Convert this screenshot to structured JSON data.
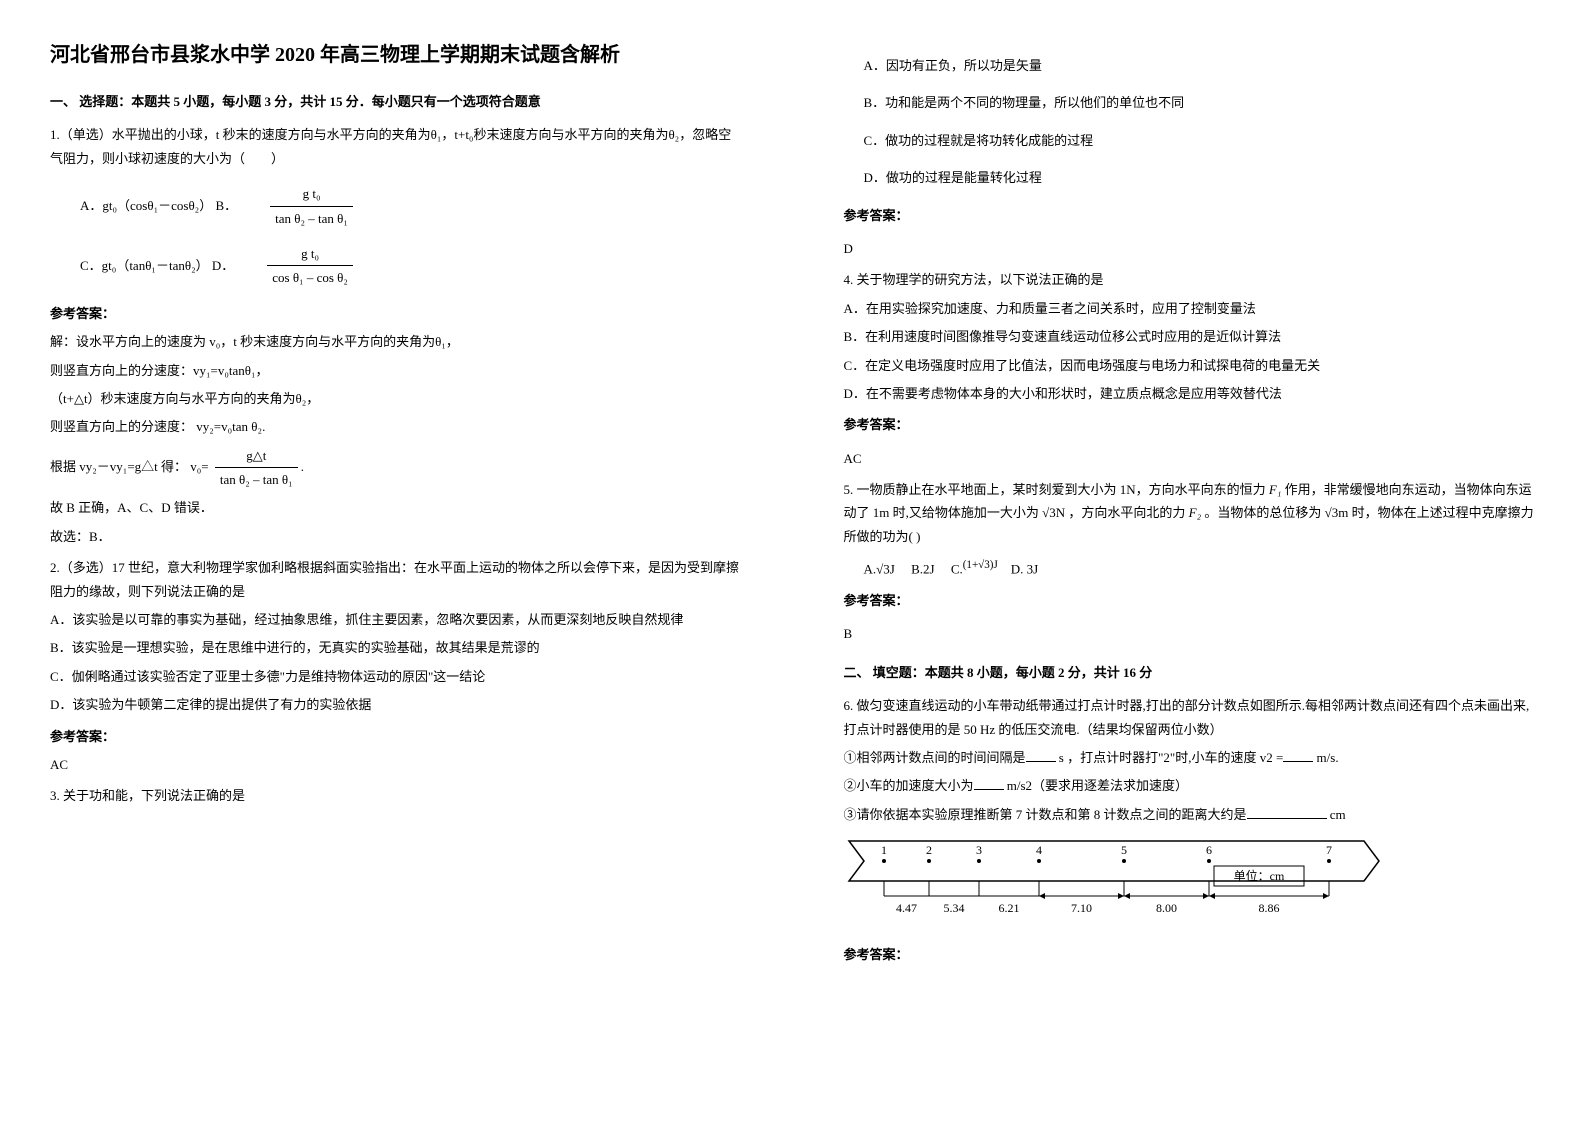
{
  "title": "河北省邢台市县浆水中学 2020 年高三物理上学期期末试题含解析",
  "section1_header": "一、 选择题：本题共 5 小题，每小题 3 分，共计 15 分．每小题只有一个选项符合题意",
  "q1_text": "1.（单选）水平抛出的小球，t 秒末的速度方向与水平方向的夹角为θ₁，t+t₀秒末速度方向与水平方向的夹角为θ₂，忽略空气阻力，则小球初速度的大小为（　　）",
  "q1_optA": "A．gt₀（cosθ₁－cosθ₂）  B．",
  "q1_optB_num": "g t₀",
  "q1_optB_den": "tan θ₂ – tan θ₁",
  "q1_optC": "C．gt₀（tanθ₁－tanθ₂）  D．",
  "q1_optD_num": "g t₀",
  "q1_optD_den": "cos θ₁ – cos θ₂",
  "answer_label": "参考答案：",
  "q1_ans1": "解：设水平方向上的速度为 v₀，t 秒末速度方向与水平方向的夹角为θ₁，",
  "q1_ans2": "则竖直方向上的分速度：vy₁=v₀tanθ₁，",
  "q1_ans3": "（t+△t）秒末速度方向与水平方向的夹角为θ₂，",
  "q1_ans4_prefix": "则竖直方向上的分速度：",
  "q1_ans4_formula": "vy₂=v₀tan θ₂",
  "q1_ans5_prefix": "根据 vy₂－vy₁=g△t 得：",
  "q1_ans5_num": "g△t",
  "q1_ans5_den": "tan θ₂ – tan θ₁",
  "q1_ans5_eq": "v₀=",
  "q1_ans6": "故 B 正确，A、C、D 错误．",
  "q1_ans7": "故选：B．",
  "q2_text": "2.（多选）17 世纪，意大利物理学家伽利略根据斜面实验指出：在水平面上运动的物体之所以会停下来，是因为受到摩擦阻力的缘故，则下列说法正确的是",
  "q2_A": "A．该实验是以可靠的事实为基础，经过抽象思维，抓住主要因素，忽略次要因素，从而更深刻地反映自然规律",
  "q2_B": "B．该实验是一理想实验，是在思维中进行的，无真实的实验基础，故其结果是荒谬的",
  "q2_C": "C．伽俐略通过该实验否定了亚里士多德\"力是维持物体运动的原因\"这一结论",
  "q2_D": "D．该实验为牛顿第二定律的提出提供了有力的实验依据",
  "q2_answer": "AC",
  "q3_text": "3. 关于功和能，下列说法正确的是",
  "q3_A": "A．因功有正负，所以功是矢量",
  "q3_B": "B．功和能是两个不同的物理量，所以他们的单位也不同",
  "q3_C": "C．做功的过程就是将功转化成能的过程",
  "q3_D": "D．做功的过程是能量转化过程",
  "q3_answer": "D",
  "q4_text": "4. 关于物理学的研究方法，以下说法正确的是",
  "q4_A": "A．在用实验探究加速度、力和质量三者之间关系时，应用了控制变量法",
  "q4_B": "B．在利用速度时间图像推导匀变速直线运动位移公式时应用的是近似计算法",
  "q4_C": "C．在定义电场强度时应用了比值法，因而电场强度与电场力和试探电荷的电量无关",
  "q4_D": "D．在不需要考虑物体本身的大小和形状时，建立质点概念是应用等效替代法",
  "q4_answer": "AC",
  "q5_text1": "5. 一物质静止在水平地面上，某时刻爱到大小为 1N，方向水平向东的恒力",
  "q5_text2": "作用，非常缓慢地向东运动，当物体向东运动了 1m 时,又给物体施加一大小为",
  "q5_text3": "，方向水平向北的力",
  "q5_text4": "。当物体的总位移为",
  "q5_text5": "时，物体在上述过程中克摩擦力所做的功为(   )",
  "q5_F1": "F₁",
  "q5_sqrt3N": "√3N",
  "q5_F2": "F₂",
  "q5_sqrt3m": "√3m",
  "q5_optA": "A.√3J",
  "q5_optB": "B.2J",
  "q5_optC_prefix": "C.",
  "q5_optC": "(1+√3)J",
  "q5_optD": "D.  3J",
  "q5_answer": "B",
  "section2_header": "二、 填空题：本题共 8 小题，每小题 2 分，共计 16 分",
  "q6_text": "6. 做匀变速直线运动的小车带动纸带通过打点计时器,打出的部分计数点如图所示.每相邻两计数点间还有四个点未画出来,打点计时器使用的是 50 Hz 的低压交流电.（结果均保留两位小数）",
  "q6_line1_a": "①相邻两计数点间的时间间隔是",
  "q6_line1_b": "s ，打点计时器打\"2\"时,小车的速度 v2 =",
  "q6_line1_c": "m/s.",
  "q6_line2_a": "②小车的加速度大小为",
  "q6_line2_b": "m/s2（要求用逐差法求加速度）",
  "q6_line3_a": "③请你依据本实验原理推断第 7 计数点和第 8 计数点之间的距离大约是",
  "q6_line3_b": "cm",
  "diagram": {
    "unit_label": "单位：cm",
    "points": [
      "1",
      "2",
      "3",
      "4",
      "5",
      "6",
      "7"
    ],
    "distances": [
      "4.47",
      "5.34",
      "6.21",
      "7.10",
      "8.00",
      "8.86"
    ]
  }
}
